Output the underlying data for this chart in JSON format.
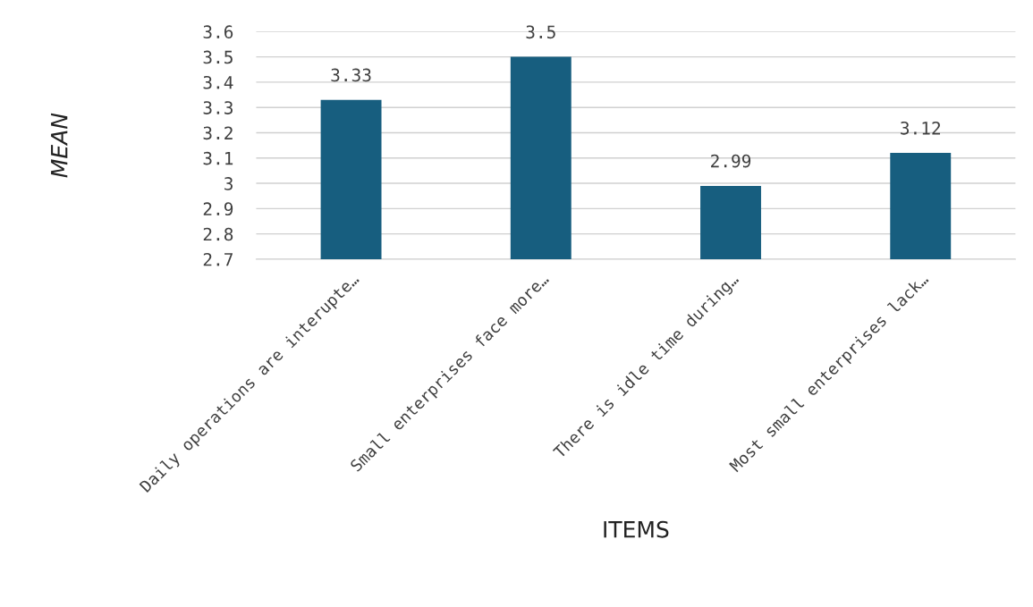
{
  "chart_data": {
    "type": "bar",
    "categories": [
      "Daily operations are interupte…",
      "Small enterprises face more…",
      "There is idle time during…",
      "Most small enterprises lack…"
    ],
    "values": [
      3.33,
      3.5,
      2.99,
      3.12
    ],
    "color": "#175e7f",
    "xlabel": "ITEMS",
    "ylabel": "MEAN",
    "ylim": [
      2.7,
      3.6
    ],
    "yticks": [
      {
        "value": 2.7,
        "label": "2.7"
      },
      {
        "value": 2.8,
        "label": "2.8"
      },
      {
        "value": 2.9,
        "label": "2.9"
      },
      3,
      {
        "value": 3.1,
        "label": "3.1"
      },
      {
        "value": 3.2,
        "label": "3.2"
      },
      {
        "value": 3.3,
        "label": "3.3"
      },
      {
        "value": 3.4,
        "label": "3.4"
      },
      {
        "value": 3.5,
        "label": "3.5"
      },
      {
        "value": 3.6,
        "label": "3.6"
      }
    ],
    "grid": "y",
    "data_labels": true
  }
}
